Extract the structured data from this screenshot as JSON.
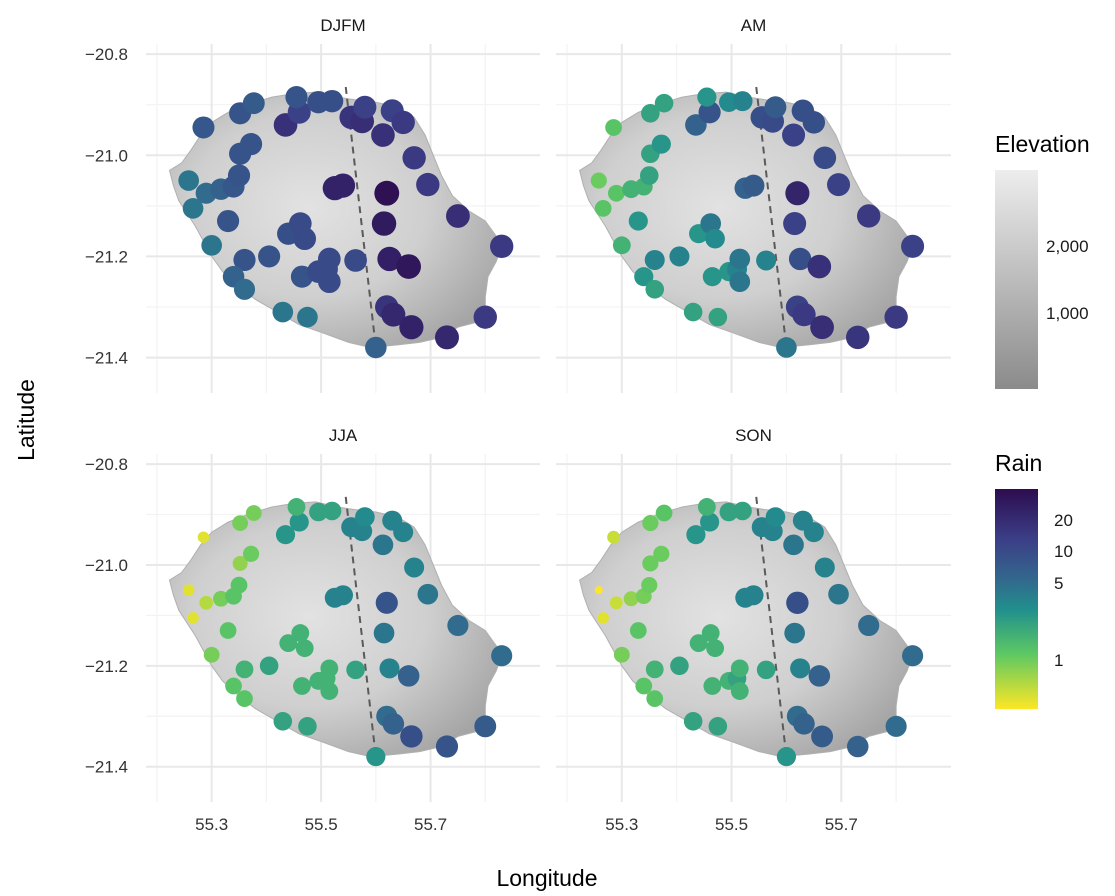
{
  "chart_data": {
    "type": "scatter",
    "description_axes": "faceted map, 2x2 panels",
    "xlabel": "Longitude",
    "ylabel": "Latitude",
    "xlim": [
      55.18,
      55.9
    ],
    "ylim": [
      -21.47,
      -20.78
    ],
    "x_ticks": [
      55.3,
      55.5,
      55.7
    ],
    "x_tick_labels": [
      "55.3",
      "55.5",
      "55.7"
    ],
    "y_ticks": [
      -20.8,
      -21.0,
      -21.2,
      -21.4
    ],
    "y_tick_labels": [
      "−20.8",
      "−21.0",
      "−21.2",
      "−21.4"
    ],
    "grid": true,
    "facets": [
      "DJFM",
      "AM",
      "JJA",
      "SON"
    ],
    "dashed_line": [
      [
        55.545,
        -20.865
      ],
      [
        55.6,
        -21.38
      ]
    ],
    "island_outline": [
      [
        55.223,
        -21.03
      ],
      [
        55.245,
        -21.015
      ],
      [
        55.262,
        -20.99
      ],
      [
        55.28,
        -20.96
      ],
      [
        55.3,
        -20.935
      ],
      [
        55.33,
        -20.915
      ],
      [
        55.37,
        -20.898
      ],
      [
        55.41,
        -20.885
      ],
      [
        55.45,
        -20.878
      ],
      [
        55.49,
        -20.875
      ],
      [
        55.53,
        -20.885
      ],
      [
        55.56,
        -20.89
      ],
      [
        55.6,
        -20.895
      ],
      [
        55.64,
        -20.905
      ],
      [
        55.67,
        -20.925
      ],
      [
        55.69,
        -20.96
      ],
      [
        55.705,
        -21.0
      ],
      [
        55.72,
        -21.04
      ],
      [
        55.74,
        -21.08
      ],
      [
        55.77,
        -21.11
      ],
      [
        55.8,
        -21.13
      ],
      [
        55.82,
        -21.16
      ],
      [
        55.83,
        -21.18
      ],
      [
        55.82,
        -21.21
      ],
      [
        55.805,
        -21.24
      ],
      [
        55.8,
        -21.28
      ],
      [
        55.8,
        -21.31
      ],
      [
        55.785,
        -21.33
      ],
      [
        55.75,
        -21.34
      ],
      [
        55.72,
        -21.36
      ],
      [
        55.68,
        -21.37
      ],
      [
        55.64,
        -21.375
      ],
      [
        55.59,
        -21.38
      ],
      [
        55.55,
        -21.37
      ],
      [
        55.5,
        -21.35
      ],
      [
        55.46,
        -21.335
      ],
      [
        55.42,
        -21.31
      ],
      [
        55.38,
        -21.285
      ],
      [
        55.35,
        -21.26
      ],
      [
        55.32,
        -21.23
      ],
      [
        55.3,
        -21.2
      ],
      [
        55.285,
        -21.17
      ],
      [
        55.27,
        -21.14
      ],
      [
        55.255,
        -21.115
      ],
      [
        55.24,
        -21.09
      ],
      [
        55.23,
        -21.06
      ]
    ],
    "stations": [
      [
        55.285,
        -20.945
      ],
      [
        55.258,
        -21.05
      ],
      [
        55.29,
        -21.075
      ],
      [
        55.317,
        -21.067
      ],
      [
        55.34,
        -21.062
      ],
      [
        55.35,
        -21.04
      ],
      [
        55.352,
        -20.997
      ],
      [
        55.372,
        -20.978
      ],
      [
        55.352,
        -20.917
      ],
      [
        55.377,
        -20.897
      ],
      [
        55.266,
        -21.105
      ],
      [
        55.33,
        -21.13
      ],
      [
        55.3,
        -21.178
      ],
      [
        55.36,
        -21.207
      ],
      [
        55.34,
        -21.24
      ],
      [
        55.36,
        -21.265
      ],
      [
        55.405,
        -21.2
      ],
      [
        55.44,
        -21.155
      ],
      [
        55.462,
        -21.135
      ],
      [
        55.47,
        -21.165
      ],
      [
        55.465,
        -21.24
      ],
      [
        55.43,
        -21.31
      ],
      [
        55.475,
        -21.32
      ],
      [
        55.495,
        -21.23
      ],
      [
        55.51,
        -21.225
      ],
      [
        55.515,
        -21.205
      ],
      [
        55.515,
        -21.25
      ],
      [
        55.563,
        -21.208
      ],
      [
        55.435,
        -20.94
      ],
      [
        55.46,
        -20.915
      ],
      [
        55.455,
        -20.885
      ],
      [
        55.495,
        -20.895
      ],
      [
        55.52,
        -20.893
      ],
      [
        55.555,
        -20.925
      ],
      [
        55.575,
        -20.933
      ],
      [
        55.58,
        -20.905
      ],
      [
        55.613,
        -20.96
      ],
      [
        55.63,
        -20.912
      ],
      [
        55.65,
        -20.935
      ],
      [
        55.67,
        -21.005
      ],
      [
        55.695,
        -21.058
      ],
      [
        55.75,
        -21.12
      ],
      [
        55.83,
        -21.18
      ],
      [
        55.525,
        -21.065
      ],
      [
        55.54,
        -21.06
      ],
      [
        55.62,
        -21.075
      ],
      [
        55.615,
        -21.135
      ],
      [
        55.625,
        -21.205
      ],
      [
        55.66,
        -21.22
      ],
      [
        55.62,
        -21.3
      ],
      [
        55.632,
        -21.315
      ],
      [
        55.665,
        -21.34
      ],
      [
        55.73,
        -21.36
      ],
      [
        55.8,
        -21.32
      ],
      [
        55.6,
        -21.38
      ]
    ],
    "series": [
      {
        "name": "DJFM",
        "rain": [
          8.5,
          5,
          6,
          7,
          8.5,
          9,
          9,
          9,
          9,
          8,
          5,
          9,
          5,
          9,
          7,
          6,
          9,
          10,
          11,
          11,
          9,
          5,
          5,
          11,
          11,
          11,
          11,
          11,
          17,
          13,
          9,
          10,
          10,
          16,
          18,
          13,
          17,
          13,
          15,
          15,
          15,
          18,
          15,
          22,
          22,
          30,
          25,
          23,
          27,
          16,
          20,
          22,
          20,
          15,
          7
        ]
      },
      {
        "name": "AM",
        "rain": [
          1.5,
          1.3,
          1.5,
          2,
          2,
          2.5,
          2.5,
          3,
          2.5,
          2.5,
          1.5,
          3,
          2,
          4,
          3,
          2.5,
          4,
          3,
          5,
          3.5,
          3,
          2.5,
          2.5,
          3,
          4,
          5,
          5,
          4,
          7,
          9,
          3,
          3.5,
          4,
          10,
          11,
          8,
          13,
          10,
          10,
          11,
          13,
          15,
          13,
          7,
          8,
          21,
          13,
          10,
          17,
          13,
          15,
          18,
          16,
          15,
          5
        ]
      },
      {
        "name": "JJA",
        "rain": [
          0.6,
          0.6,
          0.8,
          1.2,
          1.5,
          1.5,
          1,
          1.3,
          1.2,
          1.2,
          0.6,
          1.5,
          1.2,
          2,
          1.5,
          1.5,
          2.5,
          2,
          2,
          2,
          2,
          2.5,
          2.5,
          2,
          2,
          2,
          2,
          2.5,
          3,
          3,
          2,
          2.5,
          2.5,
          4,
          4,
          3.5,
          5,
          4,
          4,
          4,
          5,
          6,
          6,
          4,
          4,
          9,
          5,
          4,
          7,
          6,
          7,
          10,
          9,
          8,
          3
        ]
      },
      {
        "name": "SON",
        "rain": [
          0.7,
          0.5,
          0.7,
          1,
          1.2,
          1.3,
          1.3,
          1.3,
          1.3,
          1.5,
          0.6,
          1.5,
          1.2,
          2,
          1.5,
          1.5,
          2.5,
          2,
          2,
          2,
          2,
          2.5,
          2.5,
          2,
          2.5,
          2,
          2,
          2.5,
          3,
          3,
          2,
          2.5,
          2.5,
          4,
          4,
          3.5,
          5,
          4,
          4,
          4,
          5,
          6,
          6,
          4,
          4,
          10,
          5,
          4,
          7,
          6,
          7,
          8,
          7,
          6,
          3
        ]
      }
    ],
    "legend": {
      "placement": "right",
      "elevation": {
        "title": "Elevation",
        "ticks": [
          "2,000",
          "1,000"
        ],
        "tick_values": [
          2000,
          1000
        ],
        "colors": [
          "#ebebeb",
          "#8a8a8a"
        ]
      },
      "rain": {
        "title": "Rain",
        "ticks": [
          "20",
          "10",
          "5",
          "1"
        ],
        "tick_values": [
          20,
          10,
          5,
          1
        ],
        "colors": [
          "#2d0c4f",
          "#3b528b",
          "#21908d",
          "#5dc863",
          "#fde725"
        ]
      }
    }
  }
}
